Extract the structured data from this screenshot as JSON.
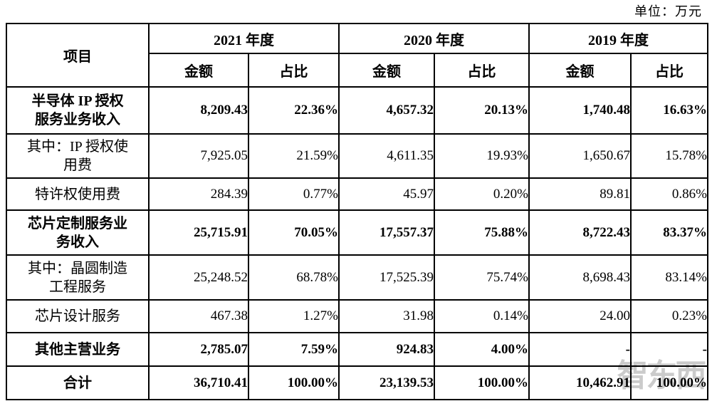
{
  "unit_label": "单位：万元",
  "watermark": "智东西",
  "colors": {
    "border": "#000000",
    "text": "#000000",
    "watermark": "#c3c3c3"
  },
  "table": {
    "item_header": "项目",
    "year_groups": [
      {
        "label": "2021 年度"
      },
      {
        "label": "2020 年度"
      },
      {
        "label": "2019 年度"
      }
    ],
    "sub_headers": {
      "amount": "金额",
      "ratio": "占比"
    },
    "rows": [
      {
        "label": "半导体 IP 授权\n服务业务收入",
        "bold": true,
        "values": [
          "8,209.43",
          "22.36%",
          "4,657.32",
          "20.13%",
          "1,740.48",
          "16.63%"
        ]
      },
      {
        "label": "其中：IP 授权使\n用费",
        "bold": false,
        "values": [
          "7,925.05",
          "21.59%",
          "4,611.35",
          "19.93%",
          "1,650.67",
          "15.78%"
        ]
      },
      {
        "label": "特许权使用费",
        "bold": false,
        "values": [
          "284.39",
          "0.77%",
          "45.97",
          "0.20%",
          "89.81",
          "0.86%"
        ]
      },
      {
        "label": "芯片定制服务业\n务收入",
        "bold": true,
        "values": [
          "25,715.91",
          "70.05%",
          "17,557.37",
          "75.88%",
          "8,722.43",
          "83.37%"
        ]
      },
      {
        "label": "其中：晶圆制造\n工程服务",
        "bold": false,
        "values": [
          "25,248.52",
          "68.78%",
          "17,525.39",
          "75.74%",
          "8,698.43",
          "83.14%"
        ]
      },
      {
        "label": "芯片设计服务",
        "bold": false,
        "values": [
          "467.38",
          "1.27%",
          "31.98",
          "0.14%",
          "24.00",
          "0.23%"
        ]
      },
      {
        "label": "其他主营业务",
        "bold": true,
        "values": [
          "2,785.07",
          "7.59%",
          "924.83",
          "4.00%",
          "-",
          "-"
        ]
      },
      {
        "label": "合计",
        "bold": true,
        "values": [
          "36,710.41",
          "100.00%",
          "23,139.53",
          "100.00%",
          "10,462.91",
          "100.00%"
        ]
      }
    ]
  }
}
